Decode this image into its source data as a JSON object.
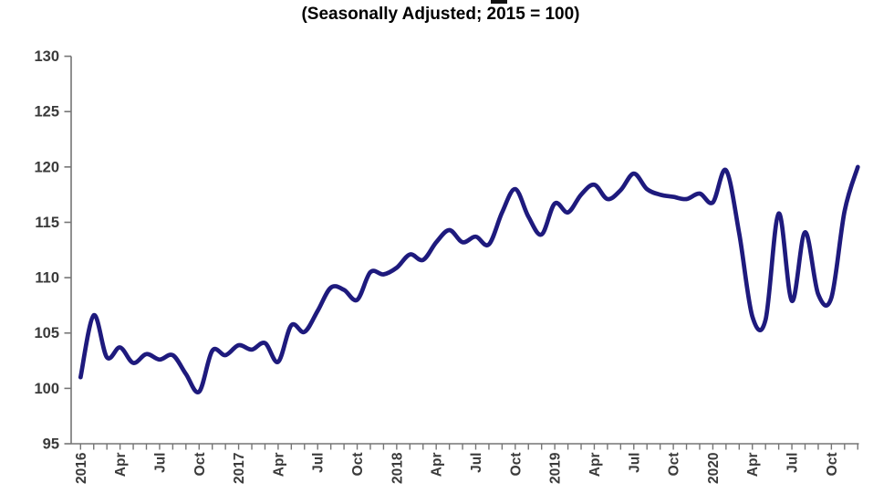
{
  "header": {
    "subtitle": "(Seasonally Adjusted; 2015 = 100)"
  },
  "chart_data": {
    "type": "line",
    "title": "(Seasonally Adjusted; 2015 = 100)",
    "series": [
      {
        "name": "Index (Seasonally Adjusted, 2015 = 100)",
        "values": [
          101.0,
          106.6,
          102.8,
          103.7,
          102.3,
          103.1,
          102.6,
          103.0,
          101.3,
          99.7,
          103.4,
          103.0,
          103.9,
          103.5,
          104.1,
          102.4,
          105.7,
          105.1,
          107.0,
          109.1,
          108.9,
          108.0,
          110.5,
          110.3,
          110.9,
          112.1,
          111.6,
          113.2,
          114.3,
          113.2,
          113.7,
          113.0,
          115.9,
          118.0,
          115.5,
          113.9,
          116.7,
          115.9,
          117.5,
          118.4,
          117.1,
          117.9,
          119.4,
          118.0,
          117.5,
          117.3,
          117.1,
          117.6,
          116.8,
          119.7,
          114.0,
          106.5,
          106.2,
          115.8,
          107.9,
          114.1,
          108.5,
          108.2,
          116.0,
          120.0
        ]
      }
    ],
    "x": [
      "2016-01",
      "2016-02",
      "2016-03",
      "2016-04",
      "2016-05",
      "2016-06",
      "2016-07",
      "2016-08",
      "2016-09",
      "2016-10",
      "2016-11",
      "2016-12",
      "2017-01",
      "2017-02",
      "2017-03",
      "2017-04",
      "2017-05",
      "2017-06",
      "2017-07",
      "2017-08",
      "2017-09",
      "2017-10",
      "2017-11",
      "2017-12",
      "2018-01",
      "2018-02",
      "2018-03",
      "2018-04",
      "2018-05",
      "2018-06",
      "2018-07",
      "2018-08",
      "2018-09",
      "2018-10",
      "2018-11",
      "2018-12",
      "2019-01",
      "2019-02",
      "2019-03",
      "2019-04",
      "2019-05",
      "2019-06",
      "2019-07",
      "2019-08",
      "2019-09",
      "2019-10",
      "2019-11",
      "2019-12",
      "2020-01",
      "2020-02",
      "2020-03",
      "2020-04",
      "2020-05",
      "2020-06",
      "2020-07",
      "2020-08",
      "2020-09",
      "2020-10",
      "2020-11",
      "2020-12"
    ],
    "x_tick_labels": [
      {
        "i": 0,
        "label": "2016"
      },
      {
        "i": 3,
        "label": "Apr"
      },
      {
        "i": 6,
        "label": "Jul"
      },
      {
        "i": 9,
        "label": "Oct"
      },
      {
        "i": 12,
        "label": "2017"
      },
      {
        "i": 15,
        "label": "Apr"
      },
      {
        "i": 18,
        "label": "Jul"
      },
      {
        "i": 21,
        "label": "Oct"
      },
      {
        "i": 24,
        "label": "2018"
      },
      {
        "i": 27,
        "label": "Apr"
      },
      {
        "i": 30,
        "label": "Jul"
      },
      {
        "i": 33,
        "label": "Oct"
      },
      {
        "i": 36,
        "label": "2019"
      },
      {
        "i": 39,
        "label": "Apr"
      },
      {
        "i": 42,
        "label": "Jul"
      },
      {
        "i": 45,
        "label": "Oct"
      },
      {
        "i": 48,
        "label": "2020"
      },
      {
        "i": 51,
        "label": "Apr"
      },
      {
        "i": 54,
        "label": "Jul"
      },
      {
        "i": 57,
        "label": "Oct"
      }
    ],
    "y_ticks": [
      95,
      100,
      105,
      110,
      115,
      120,
      125,
      130
    ],
    "ylim": [
      95,
      130
    ],
    "grid": false,
    "legend": "none",
    "line_color": "#1e1a7d",
    "axis_color": "#757575",
    "label_color": "#3a3a3a",
    "title_color": "#000000",
    "background_color": "#ffffff"
  }
}
